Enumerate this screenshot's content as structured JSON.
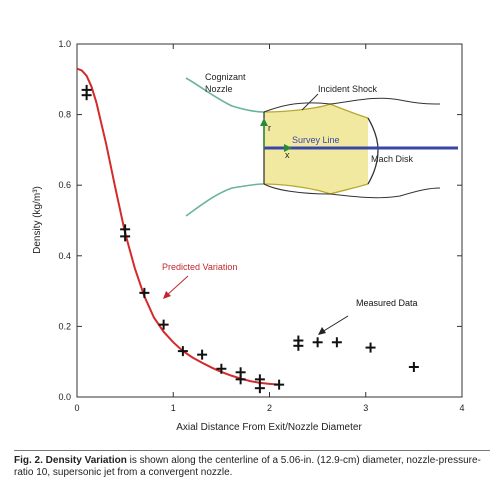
{
  "chart_data": {
    "type": "scatter",
    "xlabel": "Axial Distance From Exit/Nozzle Diameter",
    "ylabel": "Density (kg/m³)",
    "xlim": [
      0,
      4
    ],
    "ylim": [
      0,
      1.0
    ],
    "x_ticks": [
      "0",
      "1",
      "2",
      "3",
      "4"
    ],
    "y_ticks": [
      "0.0",
      "0.2",
      "0.4",
      "0.6",
      "0.8",
      "1.0"
    ],
    "grid": false,
    "series": [
      {
        "name": "Measured Data",
        "marker": "plus",
        "color": "#111111",
        "x": [
          0.1,
          0.1,
          0.5,
          0.5,
          0.7,
          0.9,
          1.1,
          1.3,
          1.5,
          1.7,
          1.7,
          1.9,
          1.9,
          2.1,
          2.3,
          2.3,
          2.5,
          2.7,
          3.05,
          3.5
        ],
        "y": [
          0.87,
          0.855,
          0.475,
          0.455,
          0.295,
          0.205,
          0.13,
          0.12,
          0.08,
          0.07,
          0.05,
          0.05,
          0.025,
          0.035,
          0.16,
          0.145,
          0.155,
          0.155,
          0.14,
          0.085
        ]
      },
      {
        "name": "Predicted Variation",
        "line": true,
        "color": "#d42a2a",
        "x": [
          0.0,
          0.05,
          0.1,
          0.15,
          0.2,
          0.3,
          0.4,
          0.5,
          0.6,
          0.7,
          0.8,
          0.9,
          1.0,
          1.1,
          1.2,
          1.3,
          1.4,
          1.5,
          1.6,
          1.7,
          1.8,
          1.9,
          2.0,
          2.1
        ],
        "y": [
          0.93,
          0.925,
          0.91,
          0.88,
          0.835,
          0.72,
          0.59,
          0.465,
          0.365,
          0.285,
          0.225,
          0.185,
          0.155,
          0.13,
          0.112,
          0.097,
          0.083,
          0.071,
          0.061,
          0.052,
          0.045,
          0.04,
          0.037,
          0.035
        ]
      }
    ],
    "annotations": [
      {
        "text": "Predicted Variation",
        "color": "#c0282e"
      },
      {
        "text": "Measured Data",
        "color": "#111111"
      }
    ],
    "inset_labels": {
      "nozzle_line1": "Cognizant",
      "nozzle_line2": "Nozzle",
      "shock": "Incident Shock",
      "survey": "Survey Line",
      "mach": "Mach Disk",
      "r": "r",
      "x": "x"
    },
    "colors": {
      "nozzle": "#6ab3a0",
      "survey_line": "#3a46a6",
      "shock_fill": "#f2e9a0",
      "axis_arrow": "#2a8a3a"
    }
  },
  "caption": {
    "lead": "Fig. 2. Density Variation",
    "text": " is shown along the centerline of a 5.06-in. (12.9-cm) diameter, nozzle-pressure-ratio 10, supersonic jet from a convergent nozzle."
  }
}
